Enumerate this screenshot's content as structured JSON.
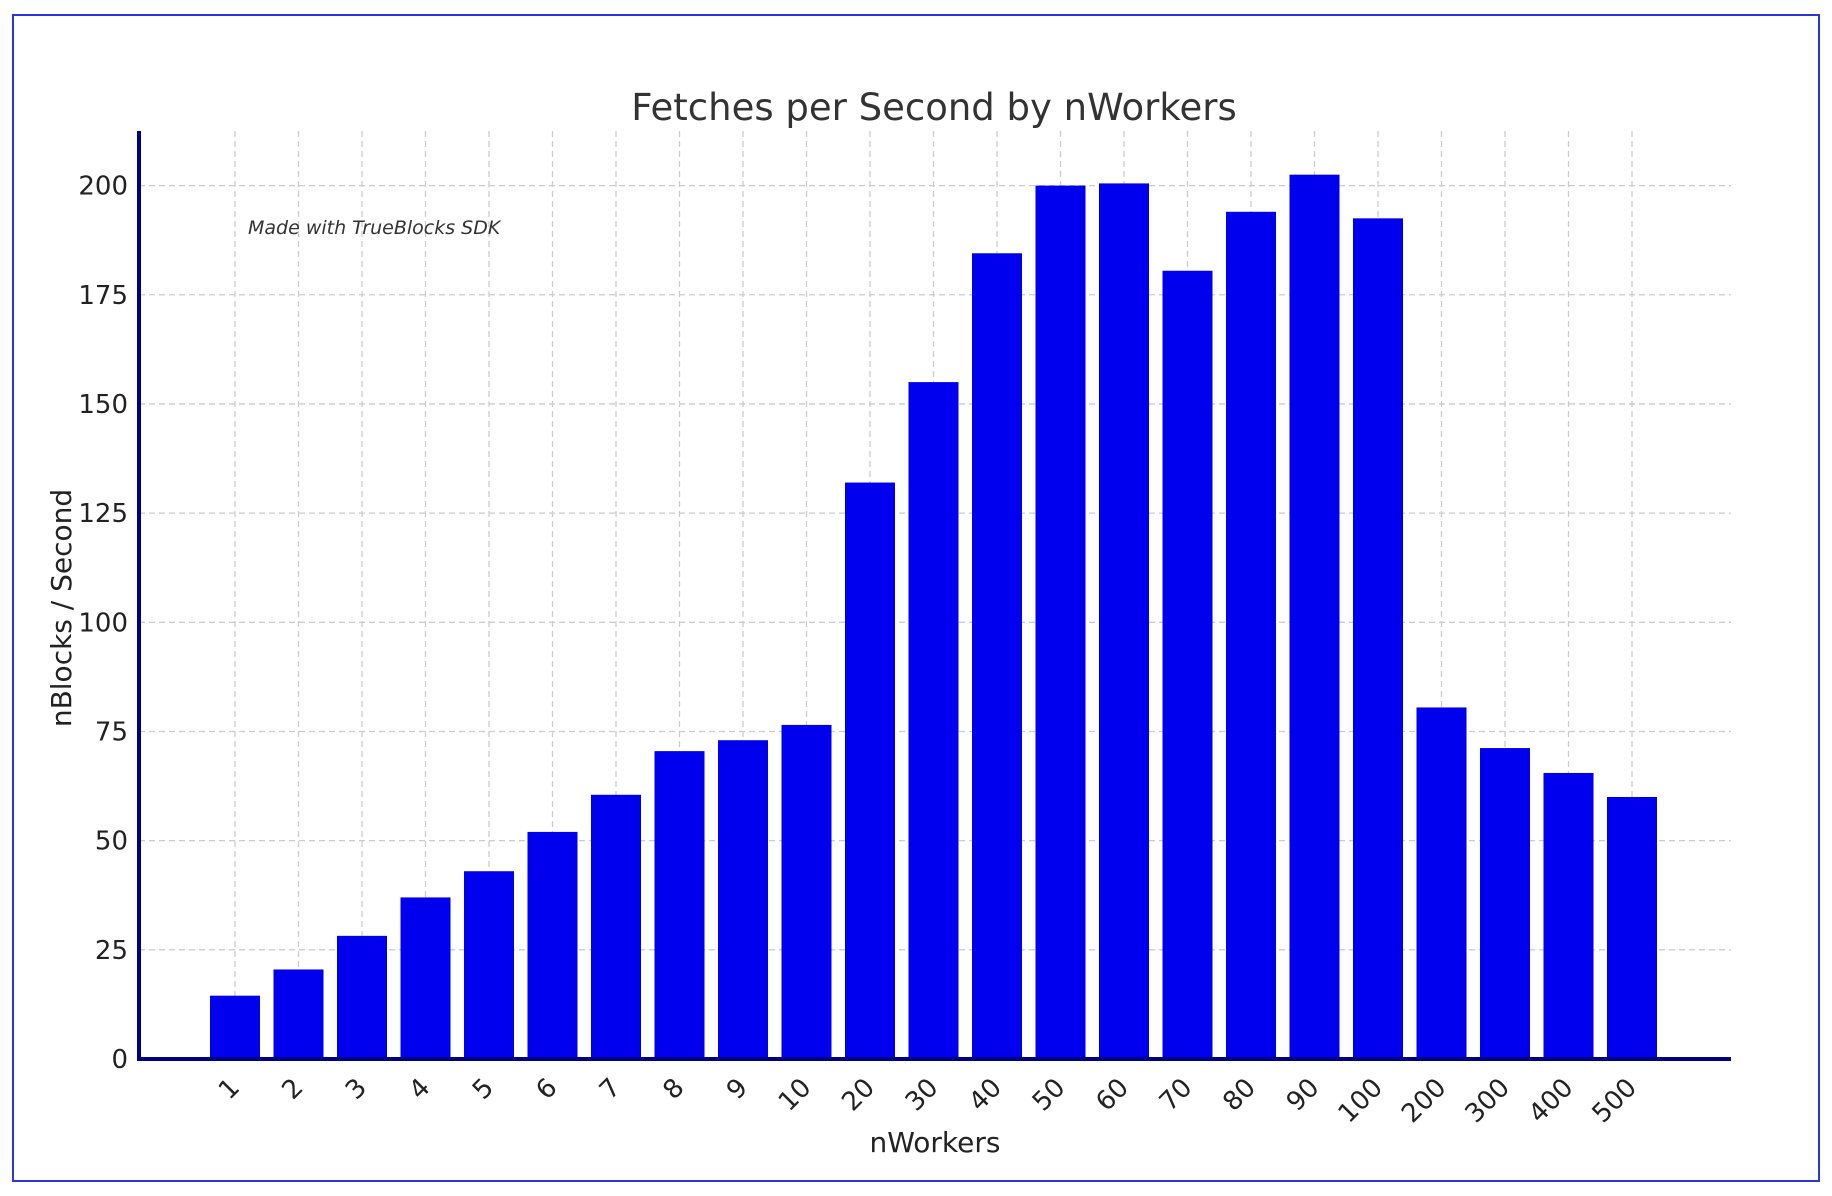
{
  "chart_data": {
    "type": "bar",
    "title": "Fetches per Second by nWorkers",
    "xlabel": "nWorkers",
    "ylabel": "nBlocks / Second",
    "annotation": "Made with TrueBlocks SDK",
    "categories": [
      "1",
      "2",
      "3",
      "4",
      "5",
      "6",
      "7",
      "8",
      "9",
      "10",
      "20",
      "30",
      "40",
      "50",
      "60",
      "70",
      "80",
      "90",
      "100",
      "200",
      "300",
      "400",
      "500"
    ],
    "values": [
      14.5,
      20.5,
      28.2,
      37,
      43,
      52,
      60.5,
      70.5,
      73,
      76.5,
      132,
      155,
      184.5,
      200,
      200.5,
      180.5,
      194,
      202.5,
      192.5,
      80.5,
      71.2,
      65.5,
      60
    ],
    "yticks": [
      "0",
      "25",
      "50",
      "75",
      "100",
      "125",
      "150",
      "175",
      "200"
    ],
    "ylim": [
      0,
      212.5
    ],
    "grid": true,
    "colors": {
      "bar": "#0000ee",
      "axis": "#000080",
      "grid": "#cccccc",
      "frame": "#2a37d6"
    }
  }
}
